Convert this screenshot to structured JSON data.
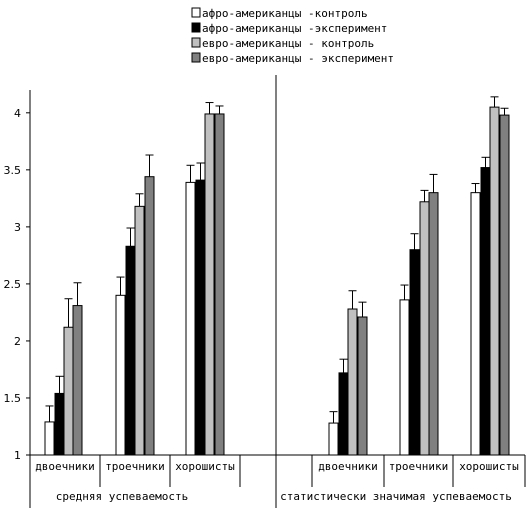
{
  "chart_data": {
    "type": "bar",
    "ylim": [
      1,
      4.2
    ],
    "yticks": [
      "1",
      "1.5",
      "2",
      "2.5",
      "3",
      "3.5",
      "4"
    ],
    "series": [
      {
        "name": "афро-американцы -контроль",
        "color": "#ffffff"
      },
      {
        "name": "афро-американцы -эксперимент",
        "color": "#000000"
      },
      {
        "name": "евро-американцы - контроль",
        "color": "#c0c0c0"
      },
      {
        "name": "евро-американцы - эксперимент",
        "color": "#808080"
      }
    ],
    "groups": [
      {
        "label": "средняя успеваемость",
        "categories": [
          {
            "label": "двоечники",
            "values": [
              1.29,
              1.54,
              2.12,
              2.31
            ],
            "errors": [
              0.14,
              0.15,
              0.25,
              0.2
            ]
          },
          {
            "label": "троечники",
            "values": [
              2.4,
              2.83,
              3.18,
              3.44
            ],
            "errors": [
              0.16,
              0.16,
              0.11,
              0.19
            ]
          },
          {
            "label": "хорошисты",
            "values": [
              3.39,
              3.41,
              3.99,
              3.99
            ],
            "errors": [
              0.15,
              0.15,
              0.1,
              0.07
            ]
          }
        ]
      },
      {
        "label": "статистически значимая успеваемость",
        "categories": [
          {
            "label": "двоечники",
            "values": [
              1.28,
              1.72,
              2.28,
              2.21
            ],
            "errors": [
              0.1,
              0.12,
              0.16,
              0.13
            ]
          },
          {
            "label": "троечники",
            "values": [
              2.36,
              2.8,
              3.22,
              3.3
            ],
            "errors": [
              0.13,
              0.14,
              0.1,
              0.16
            ]
          },
          {
            "label": "хорошисты",
            "values": [
              3.3,
              3.52,
              4.05,
              3.98
            ],
            "errors": [
              0.08,
              0.09,
              0.09,
              0.06
            ]
          }
        ]
      }
    ],
    "legend_position": "top-center",
    "grid": false
  }
}
